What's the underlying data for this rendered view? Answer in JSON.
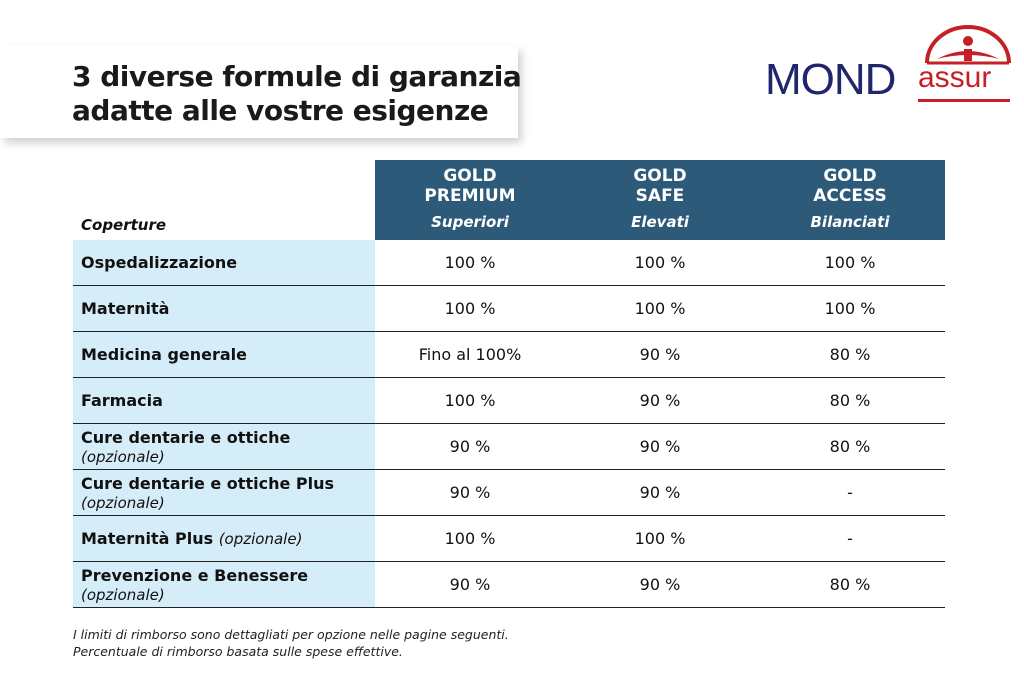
{
  "title": {
    "line1": "3 diverse formule di garanzia",
    "line2": "adatte alle vostre esigenze"
  },
  "logo": {
    "part1": "MOND",
    "part2": "assur",
    "colors": {
      "mond": "#20266b",
      "assur": "#c42026"
    }
  },
  "table": {
    "coverage_header": "Coperture",
    "plans": [
      {
        "name1": "GOLD",
        "name2": "PREMIUM",
        "level": "Superiori"
      },
      {
        "name1": "GOLD",
        "name2": "SAFE",
        "level": "Elevati"
      },
      {
        "name1": "GOLD",
        "name2": "ACCESS",
        "level": "Bilanciati"
      }
    ],
    "rows": [
      {
        "label": "Ospedalizzazione",
        "note": "",
        "values": [
          "100 %",
          "100 %",
          "100 %"
        ]
      },
      {
        "label": "Maternità",
        "note": "",
        "values": [
          "100 %",
          "100 %",
          "100 %"
        ]
      },
      {
        "label": "Medicina generale",
        "note": "",
        "values": [
          "Fino al 100%",
          "90 %",
          "80 %"
        ]
      },
      {
        "label": "Farmacia",
        "note": "",
        "values": [
          "100 %",
          "90 %",
          "80 %"
        ]
      },
      {
        "label": "Cure dentarie e ottiche",
        "note": "(opzionale)",
        "values": [
          "90 %",
          "90 %",
          "80 %"
        ]
      },
      {
        "label": "Cure dentarie e ottiche Plus",
        "note": "(opzionale)",
        "values": [
          "90 %",
          "90 %",
          "-"
        ]
      },
      {
        "label": "Maternità Plus",
        "note": "(opzionale)",
        "values": [
          "100 %",
          "100 %",
          "-"
        ]
      },
      {
        "label": "Prevenzione e Benessere",
        "note": "(opzionale)",
        "values": [
          "90 %",
          "90 %",
          "80 %"
        ]
      }
    ],
    "colors": {
      "header": "#2e5a7a",
      "label_bg": "#d5edf8"
    }
  },
  "notes": [
    "I limiti di rimborso sono dettagliati per opzione nelle pagine seguenti.",
    "Percentuale di rimborso basata sulle spese effettive."
  ]
}
